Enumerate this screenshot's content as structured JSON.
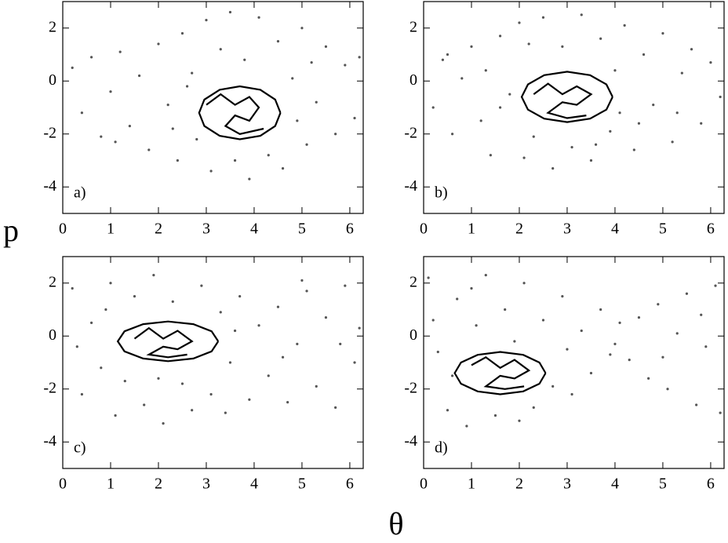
{
  "x_label": "θ",
  "y_label": "p",
  "chart_data": [
    {
      "type": "scatter",
      "label": "a)",
      "xlim": [
        0,
        6.28
      ],
      "ylim": [
        -5,
        3
      ],
      "xticks": [
        0,
        1,
        2,
        3,
        4,
        5,
        6
      ],
      "yticks": [
        -4,
        -2,
        0,
        2
      ],
      "series": [
        {
          "color": "#555555",
          "x": [
            0.2,
            0.4,
            0.6,
            0.8,
            1.0,
            1.2,
            1.4,
            1.6,
            1.8,
            2.0,
            2.2,
            2.4,
            2.5,
            2.7,
            2.8,
            3.0,
            3.1,
            3.3,
            3.5,
            3.6,
            3.8,
            3.9,
            4.1,
            4.3,
            4.5,
            4.6,
            4.8,
            5.0,
            5.1,
            5.3,
            5.5,
            5.7,
            5.9,
            6.1,
            6.2,
            2.3,
            5.2,
            1.1,
            4.9,
            2.6
          ],
          "values": [
            0.5,
            -1.2,
            0.9,
            -2.1,
            -0.4,
            1.1,
            -1.7,
            0.2,
            -2.6,
            1.4,
            -0.9,
            -3.0,
            1.8,
            0.3,
            -2.2,
            2.3,
            -3.4,
            1.2,
            2.6,
            -3.0,
            0.8,
            -3.7,
            2.4,
            -2.8,
            1.5,
            -3.3,
            0.1,
            2.0,
            -2.4,
            -0.8,
            1.3,
            -2.0,
            0.6,
            -1.4,
            0.9,
            -1.8,
            0.7,
            -2.3,
            -1.5,
            -0.2
          ]
        },
        {
          "type": "line",
          "color": "#000000",
          "x": [
            4.55,
            4.44,
            4.13,
            3.7,
            3.28,
            2.96,
            2.85,
            2.96,
            3.28,
            3.7,
            4.13,
            4.44,
            4.55
          ],
          "values": [
            -1.2,
            -0.7,
            -0.33,
            -0.2,
            -0.33,
            -0.7,
            -1.2,
            -1.7,
            -2.07,
            -2.2,
            -2.07,
            -1.7,
            -1.2
          ]
        },
        {
          "type": "line",
          "color": "#000000",
          "x": [
            3.0,
            3.3,
            3.6,
            3.9,
            4.1,
            3.9,
            3.6,
            3.4,
            3.7,
            4.2
          ],
          "values": [
            -0.9,
            -0.5,
            -0.9,
            -0.6,
            -1.0,
            -1.5,
            -1.3,
            -1.7,
            -2.0,
            -1.8
          ]
        }
      ]
    },
    {
      "type": "scatter",
      "label": "b)",
      "xlim": [
        0,
        6.28
      ],
      "ylim": [
        -5,
        3
      ],
      "xticks": [
        0,
        1,
        2,
        3,
        4,
        5,
        6
      ],
      "yticks": [
        -4,
        -2,
        0,
        2
      ],
      "series": [
        {
          "color": "#555555",
          "x": [
            0.2,
            0.4,
            0.6,
            0.8,
            1.0,
            1.2,
            1.4,
            1.6,
            1.8,
            2.0,
            2.1,
            2.3,
            2.5,
            2.7,
            2.9,
            3.1,
            3.3,
            3.5,
            3.7,
            3.9,
            4.0,
            4.2,
            4.4,
            4.6,
            4.8,
            5.0,
            5.2,
            5.4,
            5.6,
            5.8,
            6.0,
            6.2,
            1.3,
            4.5,
            5.3,
            0.5,
            2.2,
            3.6,
            4.1,
            1.6
          ],
          "values": [
            -1.0,
            0.8,
            -2.0,
            0.1,
            1.3,
            -1.5,
            -2.8,
            1.7,
            -0.5,
            2.2,
            -2.9,
            -2.1,
            2.4,
            -3.3,
            1.3,
            -2.5,
            2.5,
            -3.0,
            1.6,
            -1.9,
            0.4,
            2.1,
            -2.6,
            1.0,
            -0.9,
            1.8,
            -2.3,
            0.3,
            1.2,
            -1.6,
            0.7,
            -0.6,
            0.4,
            -1.6,
            -1.2,
            1.0,
            1.4,
            -2.4,
            -1.2,
            -1.0
          ]
        },
        {
          "type": "line",
          "color": "#000000",
          "x": [
            3.95,
            3.82,
            3.48,
            3.0,
            2.52,
            2.18,
            2.05,
            2.18,
            2.52,
            3.0,
            3.48,
            3.82,
            3.95
          ],
          "values": [
            -0.6,
            -0.13,
            0.22,
            0.35,
            0.22,
            -0.13,
            -0.6,
            -1.08,
            -1.42,
            -1.55,
            -1.42,
            -1.08,
            -0.6
          ]
        },
        {
          "type": "line",
          "color": "#000000",
          "x": [
            2.3,
            2.6,
            2.9,
            3.2,
            3.5,
            3.2,
            2.9,
            2.6,
            3.0,
            3.4
          ],
          "values": [
            -0.5,
            -0.1,
            -0.5,
            -0.2,
            -0.5,
            -0.9,
            -0.8,
            -1.2,
            -1.4,
            -1.3
          ]
        }
      ]
    },
    {
      "type": "scatter",
      "label": "c)",
      "xlim": [
        0,
        6.28
      ],
      "ylim": [
        -5,
        3
      ],
      "xticks": [
        0,
        1,
        2,
        3,
        4,
        5,
        6
      ],
      "yticks": [
        -4,
        -2,
        0,
        2
      ],
      "series": [
        {
          "color": "#555555",
          "x": [
            0.2,
            0.4,
            0.6,
            0.8,
            1.0,
            1.1,
            1.3,
            1.5,
            1.7,
            1.9,
            2.1,
            2.3,
            2.5,
            2.7,
            2.9,
            3.1,
            3.3,
            3.5,
            3.7,
            3.9,
            4.1,
            4.3,
            4.5,
            4.7,
            4.9,
            5.1,
            5.3,
            5.5,
            5.7,
            5.9,
            6.1,
            6.2,
            0.3,
            3.6,
            4.6,
            5.8,
            2.0,
            0.9,
            3.4,
            5.0
          ],
          "values": [
            1.8,
            -2.2,
            0.5,
            -1.2,
            2.0,
            -3.0,
            -1.7,
            1.5,
            -2.6,
            2.3,
            -3.3,
            1.3,
            -1.8,
            -2.8,
            1.9,
            -2.2,
            0.9,
            -1.0,
            1.5,
            -2.4,
            0.4,
            -1.5,
            1.1,
            -2.5,
            -0.3,
            1.7,
            -1.9,
            0.7,
            -2.7,
            1.9,
            -1.0,
            0.3,
            -0.4,
            0.2,
            -0.8,
            -0.3,
            -1.6,
            1.0,
            -2.9,
            2.1
          ]
        },
        {
          "type": "line",
          "color": "#000000",
          "x": [
            3.25,
            3.11,
            2.73,
            2.2,
            1.68,
            1.29,
            1.15,
            1.29,
            1.68,
            2.2,
            2.73,
            3.11,
            3.25
          ],
          "values": [
            -0.2,
            0.18,
            0.45,
            0.55,
            0.45,
            0.18,
            -0.2,
            -0.58,
            -0.85,
            -0.95,
            -0.85,
            -0.58,
            -0.2
          ]
        },
        {
          "type": "line",
          "color": "#000000",
          "x": [
            1.5,
            1.8,
            2.1,
            2.4,
            2.7,
            2.4,
            2.1,
            1.8,
            2.2,
            2.6
          ],
          "values": [
            -0.1,
            0.3,
            -0.1,
            0.2,
            -0.2,
            -0.5,
            -0.4,
            -0.7,
            -0.8,
            -0.7
          ]
        }
      ]
    },
    {
      "type": "scatter",
      "label": "d)",
      "xlim": [
        0,
        6.28
      ],
      "ylim": [
        -5,
        3
      ],
      "xticks": [
        0,
        1,
        2,
        3,
        4,
        5,
        6
      ],
      "yticks": [
        -4,
        -2,
        0,
        2
      ],
      "series": [
        {
          "color": "#555555",
          "x": [
            0.1,
            0.3,
            0.5,
            0.7,
            0.9,
            1.1,
            1.3,
            1.5,
            1.7,
            1.9,
            2.1,
            2.3,
            2.5,
            2.7,
            2.9,
            3.1,
            3.3,
            3.5,
            3.7,
            3.9,
            4.1,
            4.3,
            4.5,
            4.7,
            4.9,
            5.1,
            5.3,
            5.5,
            5.7,
            5.9,
            6.1,
            6.2,
            0.2,
            0.6,
            2.0,
            3.0,
            5.0,
            5.8,
            1.0,
            4.0
          ],
          "values": [
            2.2,
            -0.6,
            -2.8,
            1.4,
            -3.4,
            0.4,
            2.3,
            -3.0,
            1.0,
            -0.2,
            2.0,
            -2.7,
            0.6,
            -1.9,
            1.5,
            -2.2,
            0.2,
            -1.4,
            1.0,
            -0.7,
            0.5,
            -0.9,
            0.7,
            -1.6,
            1.2,
            -2.0,
            0.1,
            1.6,
            -2.6,
            -0.4,
            1.9,
            -2.9,
            0.6,
            -1.5,
            -3.2,
            -0.5,
            -0.8,
            0.8,
            1.8,
            -0.3
          ]
        },
        {
          "type": "line",
          "color": "#000000",
          "x": [
            2.55,
            2.42,
            2.08,
            1.6,
            1.13,
            0.78,
            0.65,
            0.78,
            1.13,
            1.6,
            2.08,
            2.42,
            2.55
          ],
          "values": [
            -1.4,
            -1.0,
            -0.71,
            -0.6,
            -0.71,
            -1.0,
            -1.4,
            -1.8,
            -2.09,
            -2.2,
            -2.09,
            -1.8,
            -1.4
          ]
        },
        {
          "type": "line",
          "color": "#000000",
          "x": [
            1.0,
            1.3,
            1.6,
            1.9,
            2.2,
            1.9,
            1.6,
            1.3,
            1.7,
            2.1
          ],
          "values": [
            -1.1,
            -0.8,
            -1.2,
            -0.9,
            -1.3,
            -1.6,
            -1.5,
            -1.9,
            -2.0,
            -1.9
          ]
        }
      ]
    }
  ]
}
